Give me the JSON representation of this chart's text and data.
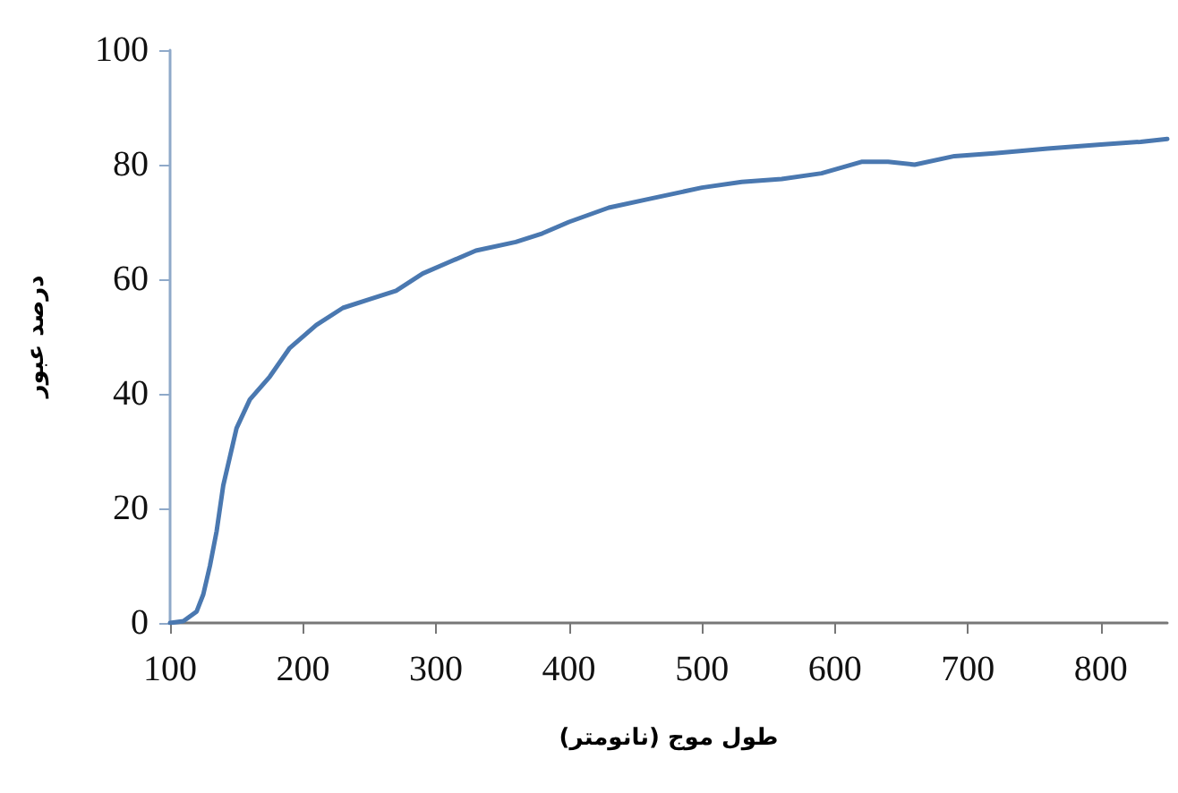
{
  "chart_data": {
    "type": "line",
    "xlabel": "طول موج (نانومتر)",
    "ylabel": "درصد عبور",
    "x": [
      100,
      110,
      120,
      125,
      130,
      135,
      140,
      150,
      160,
      175,
      190,
      210,
      230,
      250,
      270,
      290,
      310,
      330,
      360,
      380,
      400,
      430,
      460,
      500,
      530,
      560,
      590,
      620,
      640,
      660,
      690,
      720,
      760,
      800,
      830,
      850
    ],
    "series": [
      {
        "color": "#4a78b0",
        "values": [
          0,
          0.3,
          2,
          5,
          10,
          16,
          24,
          34,
          39,
          43,
          48,
          52,
          55,
          56.5,
          58,
          61,
          63,
          65,
          66.5,
          68,
          70,
          72.5,
          74,
          76,
          77,
          77.5,
          78.5,
          80.5,
          80.5,
          80,
          81.5,
          82,
          82.8,
          83.5,
          84,
          84.5
        ]
      }
    ],
    "xlim": [
      100,
      850
    ],
    "xticks": [
      100,
      200,
      300,
      400,
      500,
      600,
      700,
      800
    ],
    "ylim": [
      0,
      100
    ],
    "yticks": [
      0,
      20,
      40,
      60,
      80,
      100
    ],
    "grid": false,
    "marker": "none",
    "line_style": "solid"
  }
}
